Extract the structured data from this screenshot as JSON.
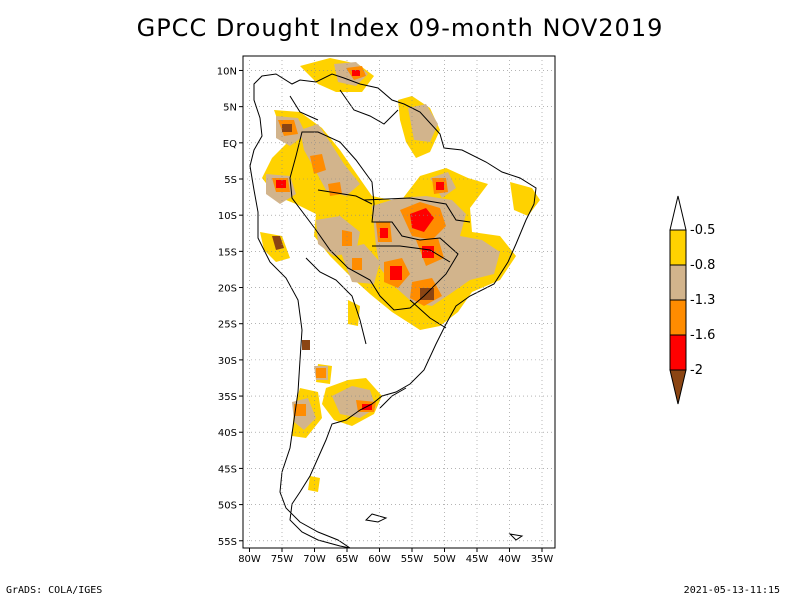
{
  "title": "GPCC Drought Index 09-month NOV2019",
  "map": {
    "lat_labels": [
      "10N",
      "5N",
      "EQ",
      "5S",
      "10S",
      "15S",
      "20S",
      "25S",
      "30S",
      "35S",
      "40S",
      "45S",
      "50S",
      "55S"
    ],
    "lon_labels": [
      "80W",
      "75W",
      "70W",
      "65W",
      "60W",
      "55W",
      "50W",
      "45W",
      "40W",
      "35W"
    ],
    "extent": {
      "lon": [
        -81,
        -33
      ],
      "lat": [
        -56,
        12
      ]
    }
  },
  "legend": {
    "labels": [
      "-0.5",
      "-0.8",
      "-1.3",
      "-1.6",
      "-2"
    ],
    "colors": [
      "#ffffff",
      "#ffd200",
      "#d2b48c",
      "#ff8c00",
      "#ff0000",
      "#8b4513"
    ]
  },
  "footer": {
    "left": "GrADS: COLA/IGES",
    "right": "2021-05-13-11:15"
  }
}
